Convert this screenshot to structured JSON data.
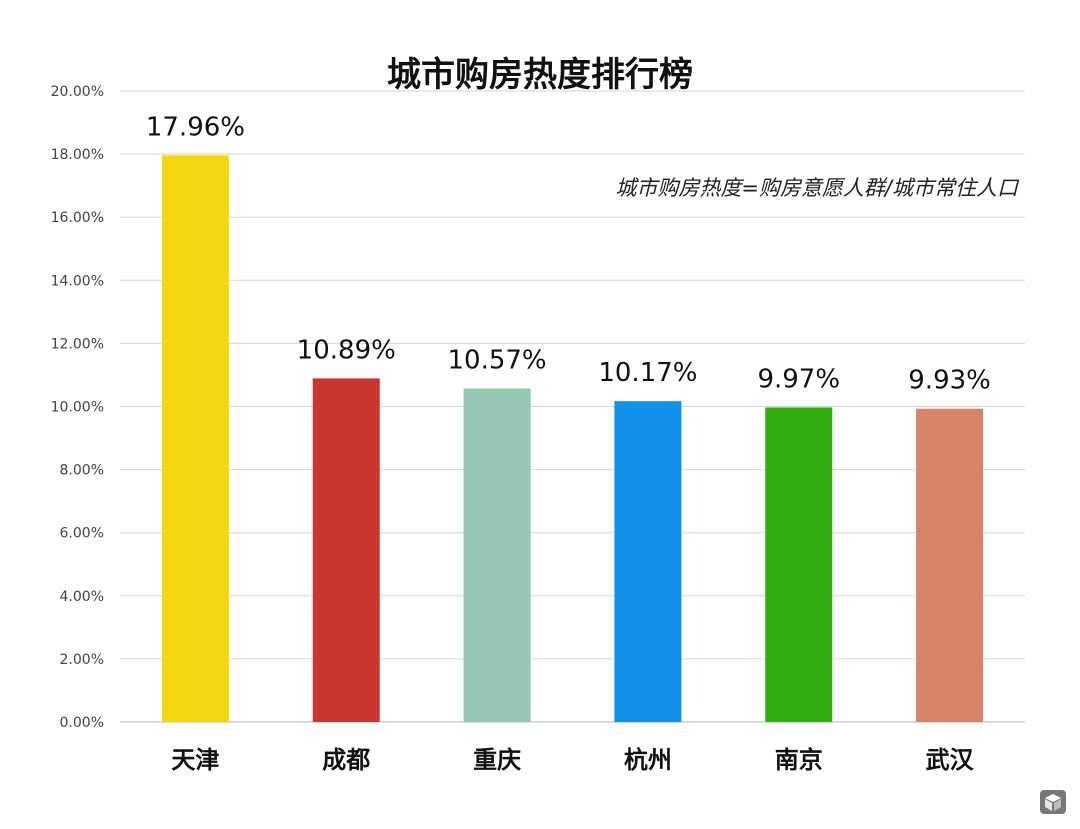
{
  "chart_data": {
    "type": "bar",
    "title": "城市购房热度排行榜",
    "annotation": "城市购房热度=购房意愿人群/城市常住人口",
    "categories": [
      "天津",
      "成都",
      "重庆",
      "杭州",
      "南京",
      "武汉"
    ],
    "values": [
      17.96,
      10.89,
      10.57,
      10.17,
      9.97,
      9.93
    ],
    "value_labels": [
      "17.96%",
      "10.89%",
      "10.57%",
      "10.17%",
      "9.97%",
      "9.93%"
    ],
    "colors": [
      "#f2d80f",
      "#c93632",
      "#95c8b0",
      "#1190e8",
      "#34ad10",
      "#d8826a"
    ],
    "y_ticks": [
      "0.00%",
      "2.00%",
      "4.00%",
      "6.00%",
      "8.00%",
      "10.00%",
      "12.00%",
      "14.00%",
      "16.00%",
      "18.00%",
      "20.00%"
    ],
    "ylim": [
      0,
      20
    ],
    "ytick_step": 2,
    "grid": true,
    "legend": "none"
  },
  "logo": {
    "icon": "cube-logo-icon"
  }
}
